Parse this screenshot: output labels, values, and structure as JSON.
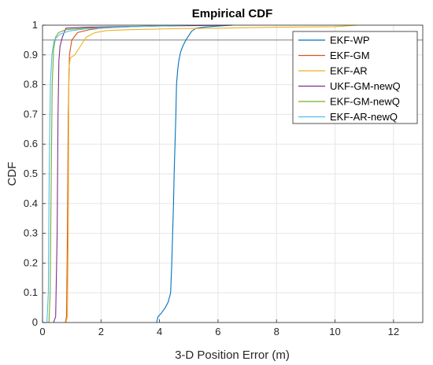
{
  "chart_data": {
    "type": "line",
    "title": "Empirical CDF",
    "xlabel": "3-D Position Error (m)",
    "ylabel": "CDF",
    "xlim": [
      0,
      13
    ],
    "ylim": [
      0,
      1
    ],
    "xticks": [
      0,
      2,
      4,
      6,
      8,
      10,
      12
    ],
    "yticks": [
      0,
      0.1,
      0.2,
      0.3,
      0.4,
      0.5,
      0.6,
      0.7,
      0.8,
      0.9,
      1
    ],
    "grid": true,
    "legend_position": "top-right",
    "reference_line_y": 0.95,
    "series": [
      {
        "name": "EKF-WP",
        "color": "#0072BD",
        "x": [
          3.9,
          3.95,
          4.05,
          4.2,
          4.3,
          4.38,
          4.42,
          4.45,
          4.48,
          4.5,
          4.53,
          4.56,
          4.58,
          4.62,
          4.66,
          4.72,
          4.8,
          4.9,
          5.0,
          5.1,
          5.25,
          5.5,
          6.0,
          6.5
        ],
        "y": [
          0.0,
          0.02,
          0.03,
          0.05,
          0.07,
          0.1,
          0.2,
          0.3,
          0.4,
          0.5,
          0.6,
          0.7,
          0.8,
          0.85,
          0.88,
          0.91,
          0.93,
          0.95,
          0.965,
          0.98,
          0.99,
          0.993,
          0.997,
          1.0
        ]
      },
      {
        "name": "EKF-GM",
        "color": "#D95319",
        "x": [
          0.78,
          0.82,
          0.85,
          0.88,
          0.92,
          1.0,
          1.2,
          1.6,
          2.0,
          3.0,
          5.0
        ],
        "y": [
          0.0,
          0.02,
          0.3,
          0.7,
          0.9,
          0.95,
          0.975,
          0.985,
          0.99,
          0.995,
          1.0
        ]
      },
      {
        "name": "EKF-AR",
        "color": "#EDB120",
        "x": [
          0.8,
          0.85,
          0.88,
          0.9,
          0.95,
          1.1,
          1.3,
          1.5,
          1.8,
          2.2,
          3.0,
          4.5,
          6.0,
          8.0,
          10.0,
          10.75
        ],
        "y": [
          0.0,
          0.02,
          0.3,
          0.85,
          0.89,
          0.9,
          0.93,
          0.96,
          0.975,
          0.982,
          0.985,
          0.988,
          0.99,
          0.993,
          0.995,
          1.0
        ]
      },
      {
        "name": "UKF-GM-newQ",
        "color": "#7E2F8E",
        "x": [
          0.38,
          0.45,
          0.5,
          0.53,
          0.56,
          0.6,
          0.68,
          0.8,
          1.5,
          3.0,
          6.5
        ],
        "y": [
          0.0,
          0.02,
          0.3,
          0.7,
          0.88,
          0.93,
          0.96,
          0.99,
          0.993,
          0.996,
          1.0
        ]
      },
      {
        "name": "EKF-GM-newQ",
        "color": "#77AC30",
        "x": [
          0.22,
          0.26,
          0.3,
          0.33,
          0.38,
          0.45,
          0.55,
          0.8,
          1.5,
          3.0,
          5.0
        ],
        "y": [
          0.0,
          0.1,
          0.5,
          0.8,
          0.92,
          0.96,
          0.975,
          0.985,
          0.99,
          0.995,
          1.0
        ]
      },
      {
        "name": "EKF-AR-newQ",
        "color": "#4DBEEE",
        "x": [
          0.15,
          0.2,
          0.23,
          0.27,
          0.32,
          0.4,
          0.6,
          0.9,
          1.5,
          3.0,
          5.0
        ],
        "y": [
          0.0,
          0.1,
          0.5,
          0.8,
          0.9,
          0.95,
          0.97,
          0.98,
          0.988,
          0.995,
          1.0
        ]
      }
    ]
  }
}
